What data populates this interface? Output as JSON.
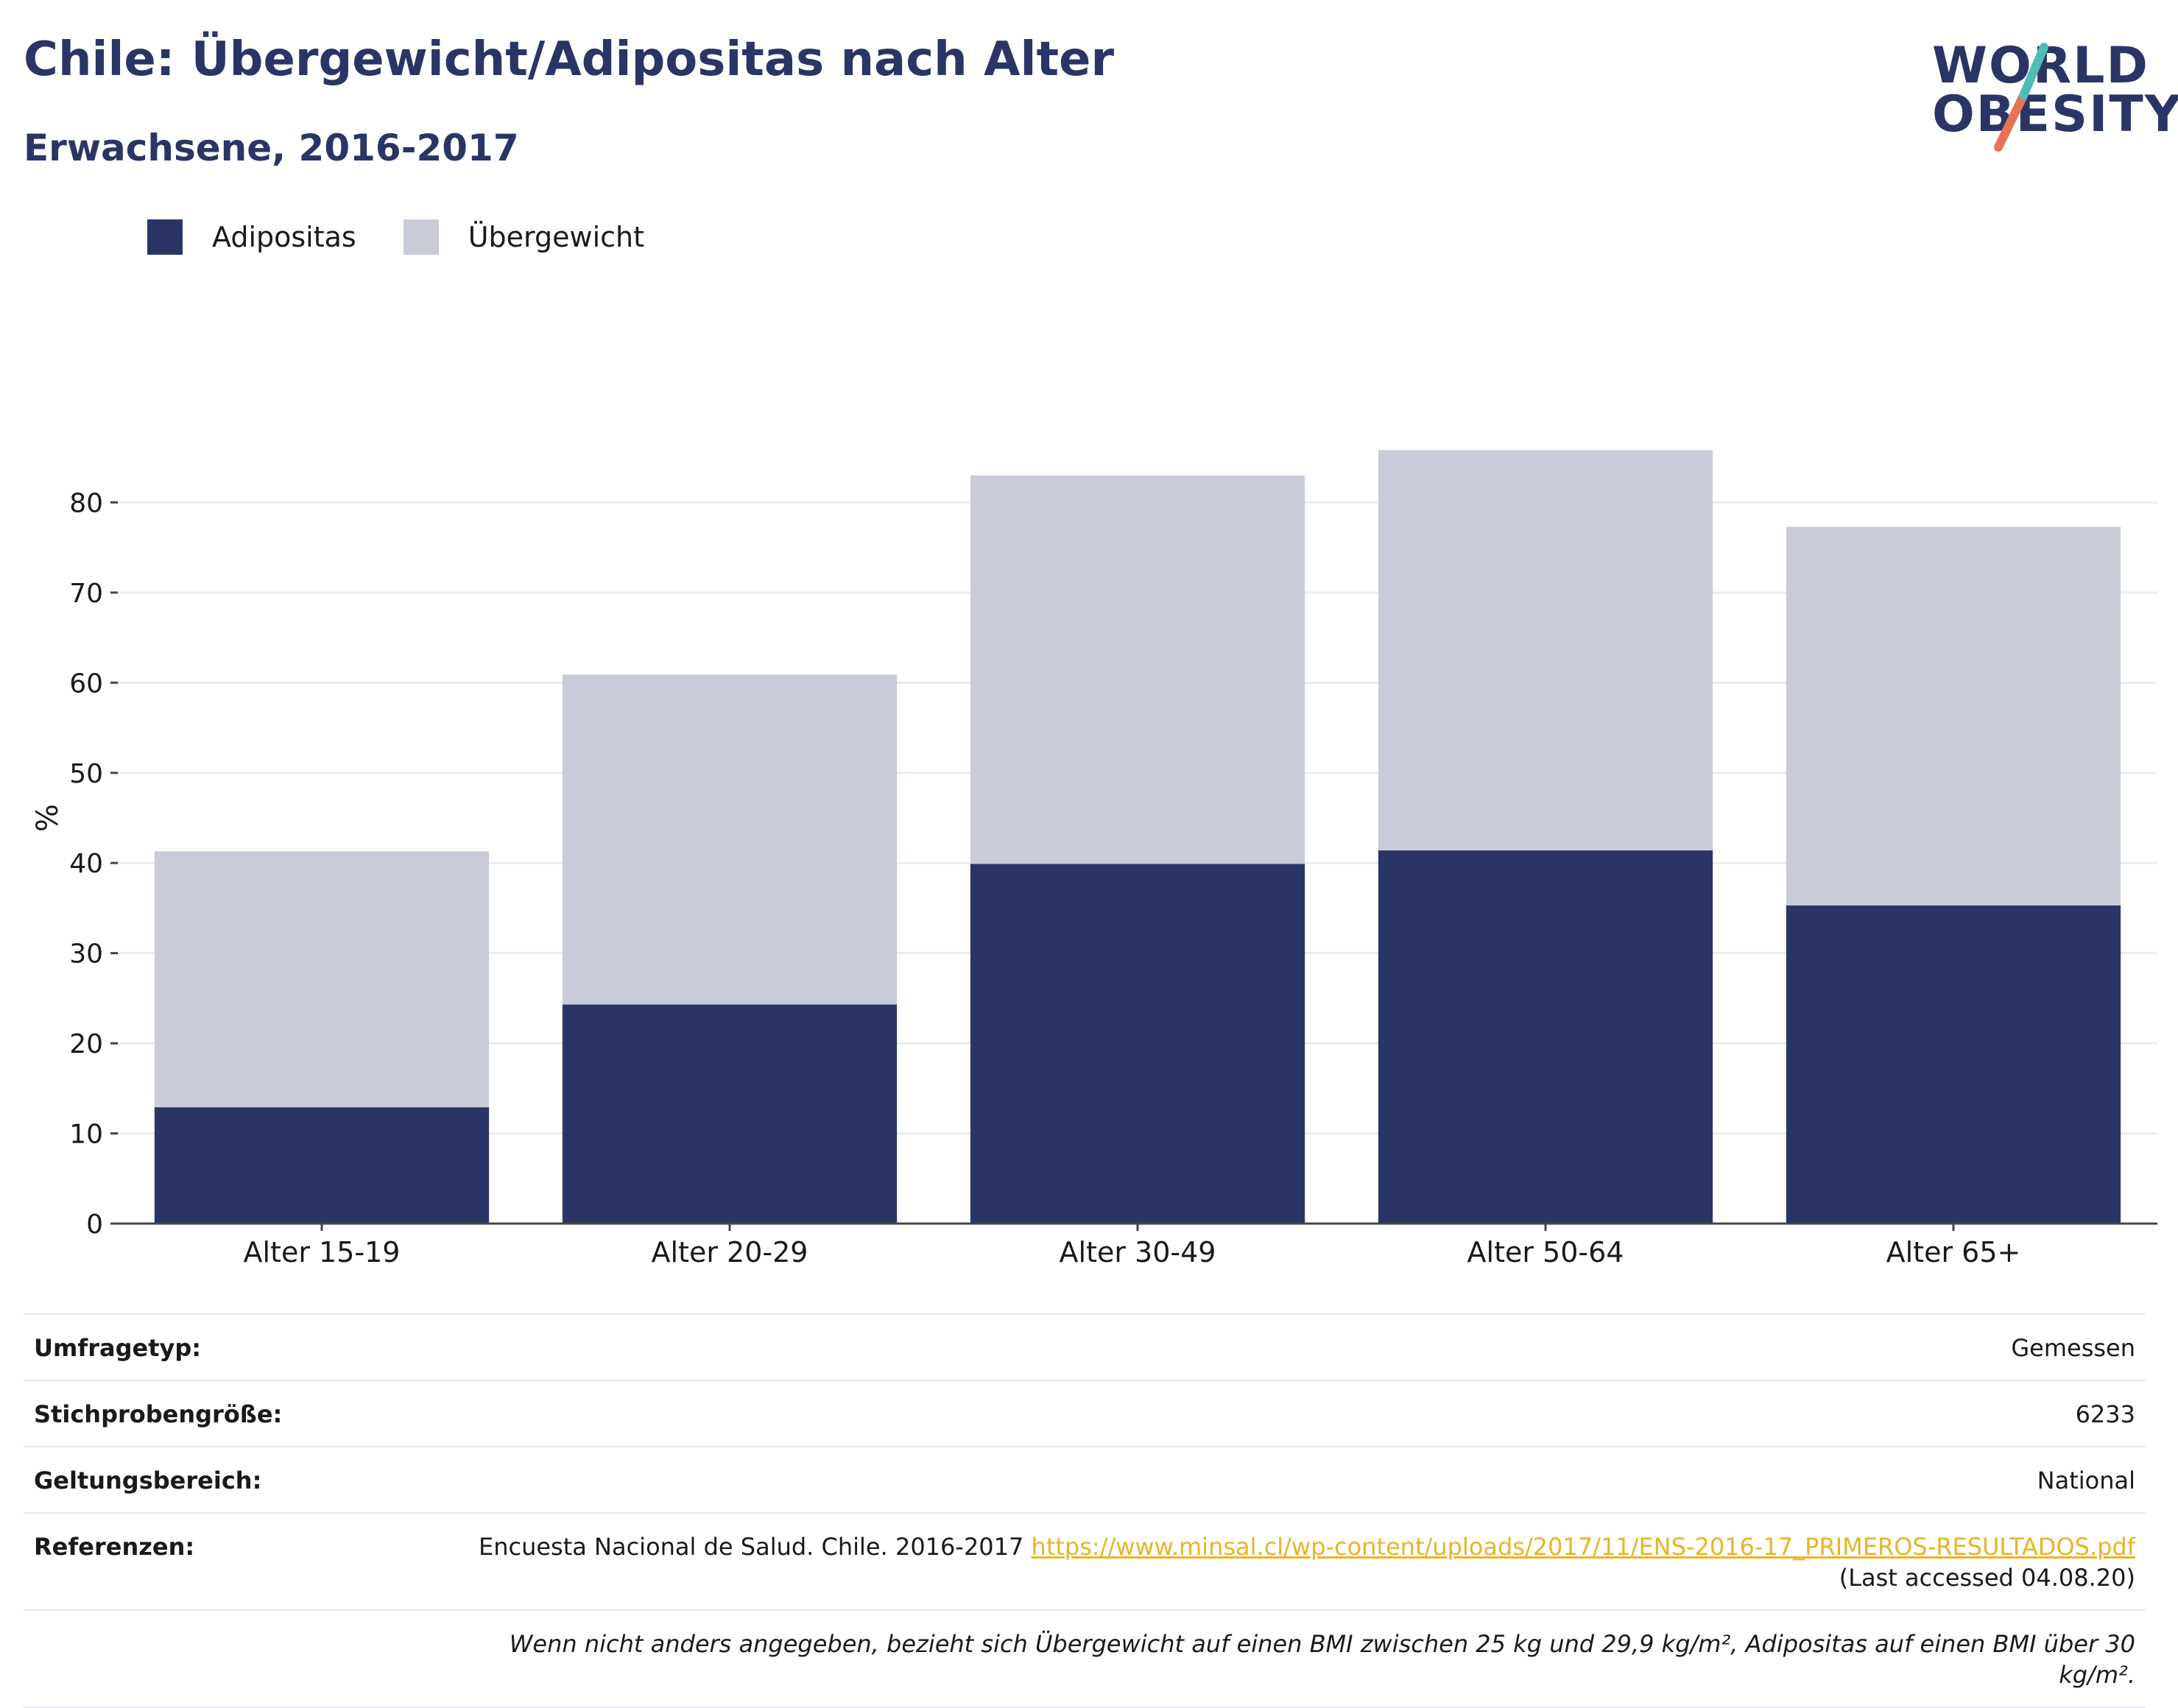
{
  "header": {
    "title": "Chile: Übergewicht/Adipositas nach Alter",
    "subtitle": "Erwachsene, 2016-2017"
  },
  "logo": {
    "line1": "WORLD",
    "line2": "OBESITY",
    "slash_colors": [
      "#4dbdb5",
      "#e8735a"
    ]
  },
  "legend": [
    {
      "label": "Adipositas",
      "color": "#2b3565"
    },
    {
      "label": "Übergewicht",
      "color": "#c9ccd8"
    }
  ],
  "chart_data": {
    "type": "bar",
    "stacked": true,
    "categories": [
      "Alter 15-19",
      "Alter 20-29",
      "Alter 30-49",
      "Alter 50-64",
      "Alter 65+"
    ],
    "series": [
      {
        "name": "Adipositas",
        "color": "#2b3565",
        "values": [
          12.9,
          24.3,
          39.9,
          41.4,
          35.3
        ]
      },
      {
        "name": "Übergewicht",
        "color": "#c9ccd8",
        "values": [
          28.4,
          36.6,
          43.1,
          44.4,
          42.0
        ]
      }
    ],
    "ylabel": "%",
    "yticks": [
      0,
      10,
      20,
      30,
      40,
      50,
      60,
      70,
      80
    ],
    "ylim": [
      0,
      90
    ],
    "grid": true,
    "legend_position": "top-left"
  },
  "info": {
    "survey_type": {
      "label": "Umfragetyp:",
      "value": "Gemessen"
    },
    "sample_size": {
      "label": "Stichprobengröße:",
      "value": "6233"
    },
    "scope": {
      "label": "Geltungsbereich:",
      "value": "National"
    },
    "references": {
      "label": "Referenzen:",
      "text": "Encuesta Nacional de Salud. Chile. 2016-2017 ",
      "link": "https://www.minsal.cl/wp-content/uploads/2017/11/ENS-2016-17_PRIMEROS-RESULTADOS.pdf",
      "suffix": " (Last accessed 04.08.20)"
    },
    "note": "Wenn nicht anders angegeben, bezieht sich Übergewicht auf einen BMI zwischen 25 kg und 29,9 kg/m², Adipositas auf einen BMI über 30 kg/m²."
  }
}
